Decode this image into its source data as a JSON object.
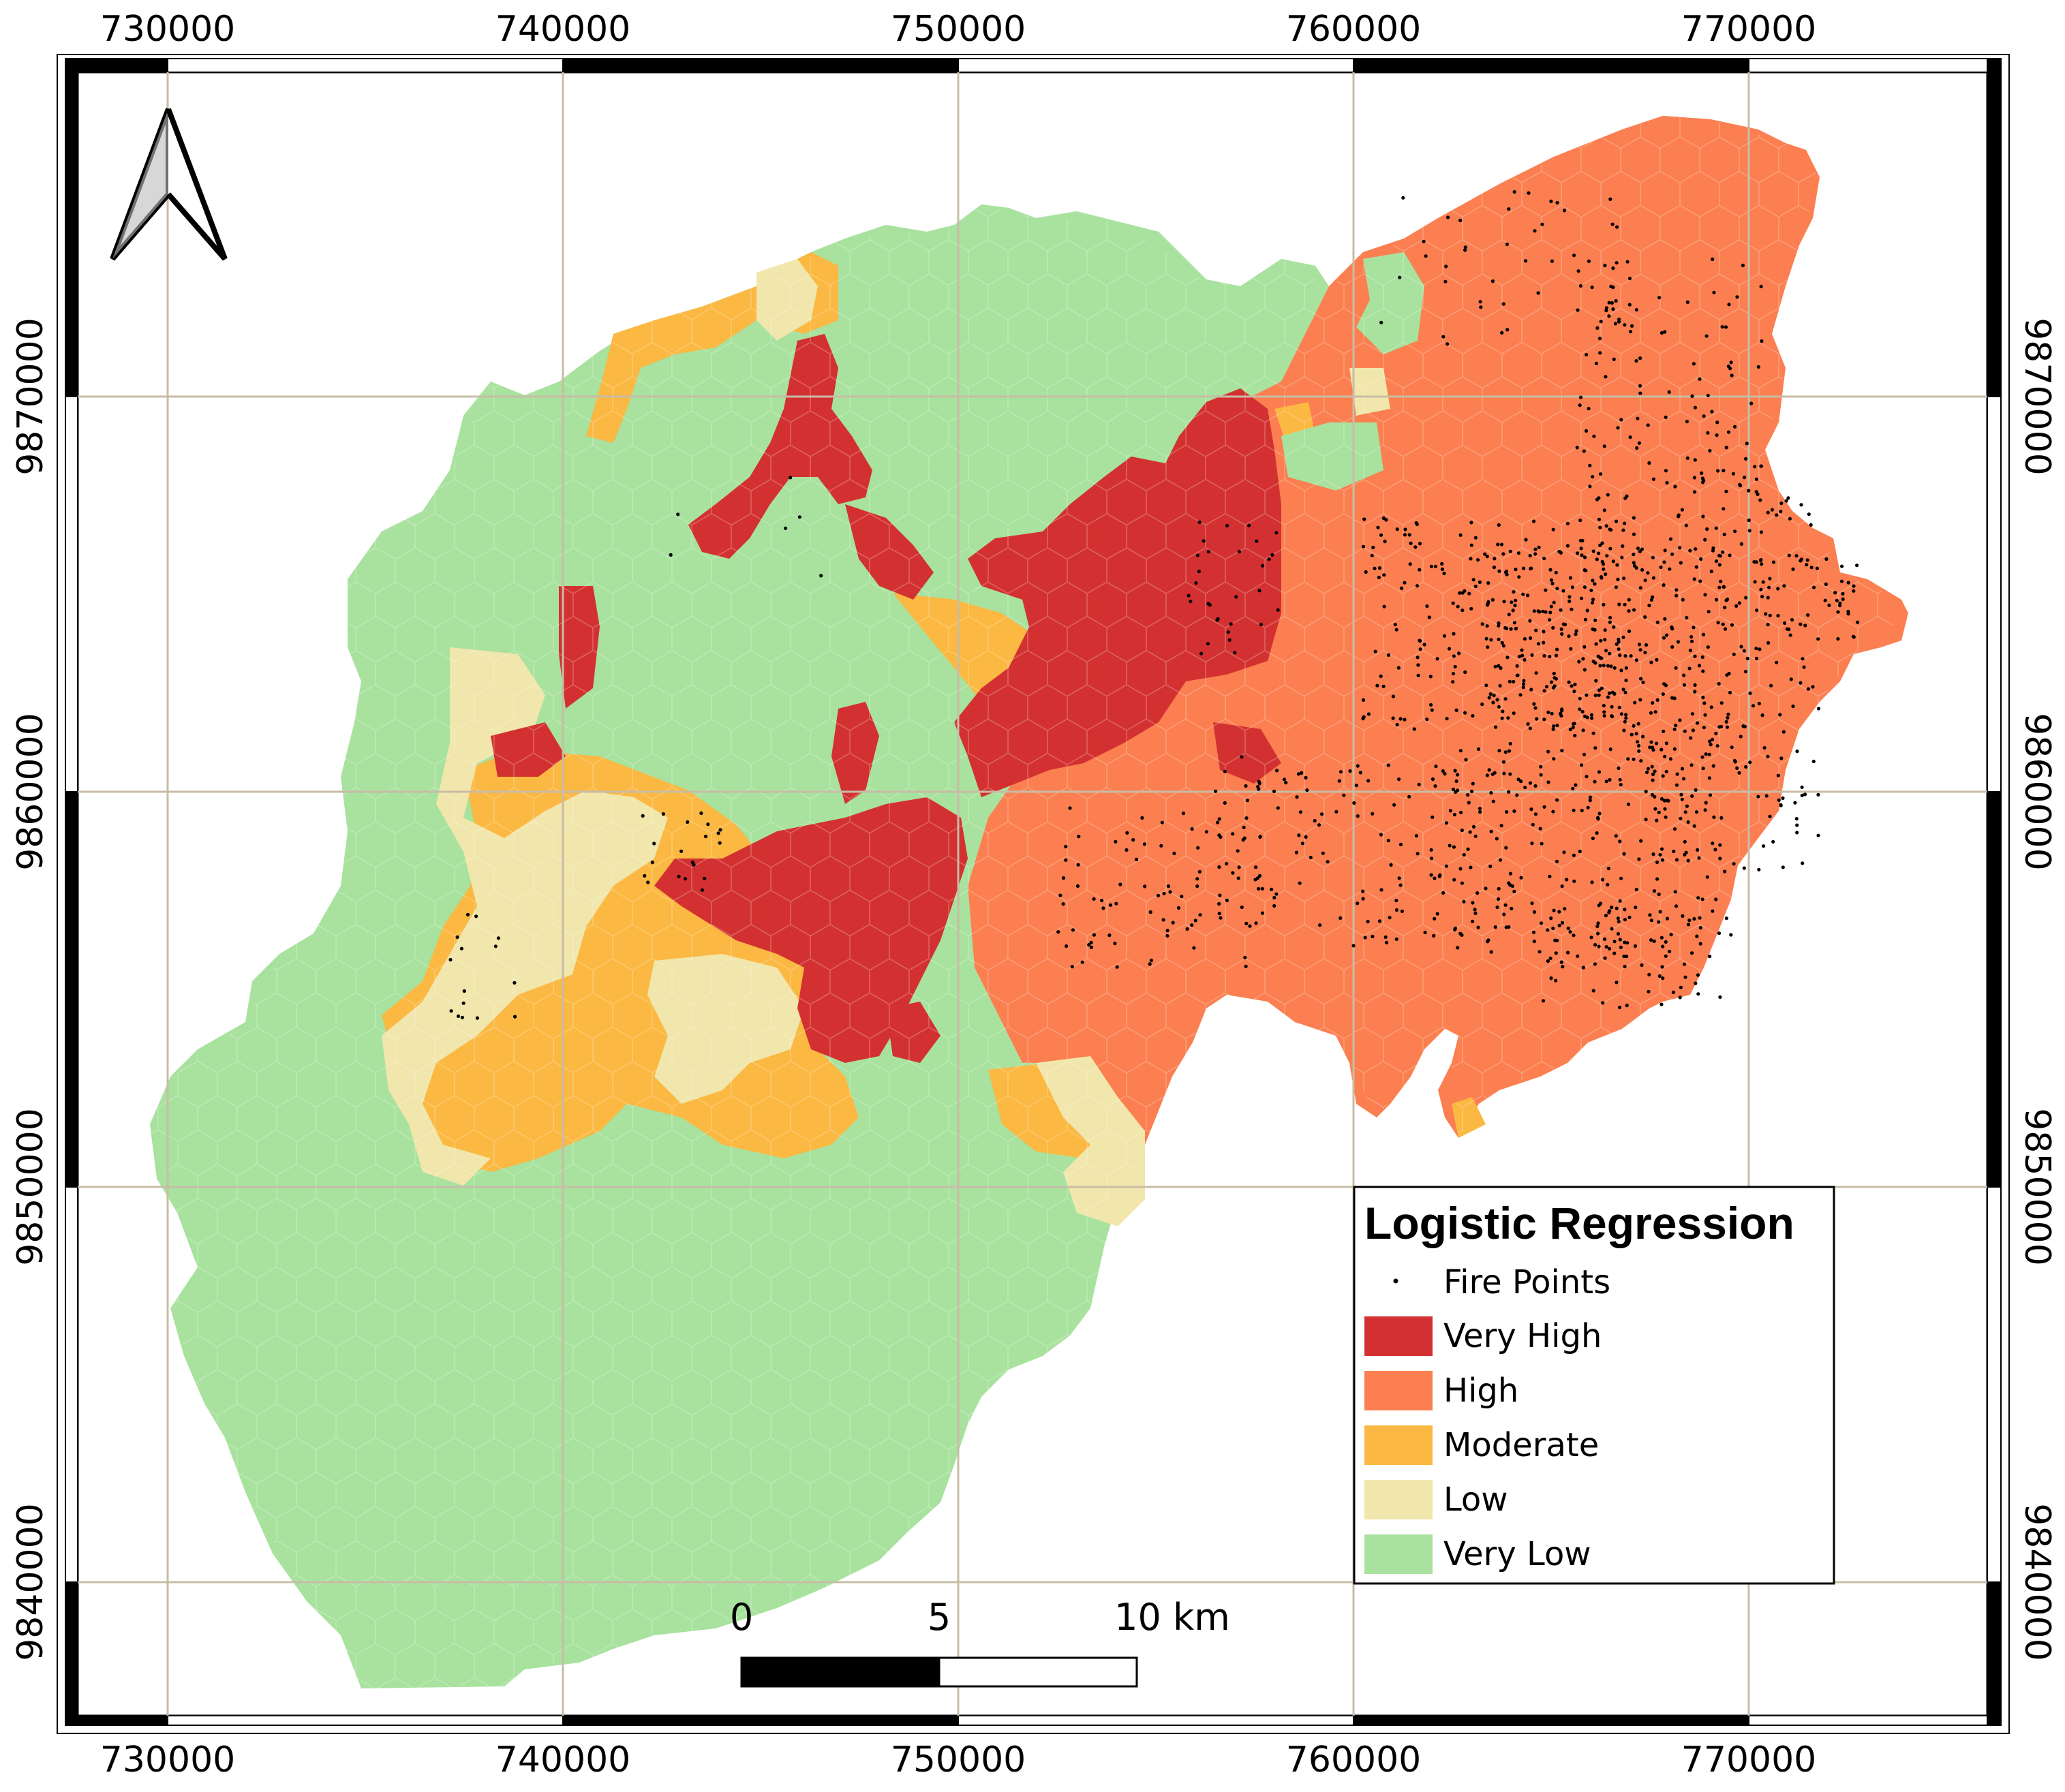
{
  "map": {
    "legend_title": "Logistic Regression",
    "fire_points_label": "Fire Points",
    "classes": [
      {
        "label": "Very High",
        "color": "#d33131"
      },
      {
        "label": "High",
        "color": "#fb7f50"
      },
      {
        "label": "Moderate",
        "color": "#fbb842"
      },
      {
        "label": "Low",
        "color": "#f1e6ab"
      },
      {
        "label": "Very Low",
        "color": "#a8e29e"
      }
    ],
    "frame_top_labels": [
      "730000",
      "740000",
      "750000",
      "760000",
      "770000"
    ],
    "frame_bottom_labels": [
      "730000",
      "740000",
      "750000",
      "760000",
      "770000"
    ],
    "frame_left_labels": [
      "9870000",
      "9860000",
      "9850000",
      "9840000"
    ],
    "frame_right_labels": [
      "9870000",
      "9860000",
      "9850000",
      "9840000"
    ],
    "scale_bar": {
      "label_0": "0",
      "label_5": "5",
      "label_10": "10 km"
    },
    "north_arrow": "north-arrow-icon",
    "grid_color": "#c8bca6",
    "point_color": "#000000"
  }
}
